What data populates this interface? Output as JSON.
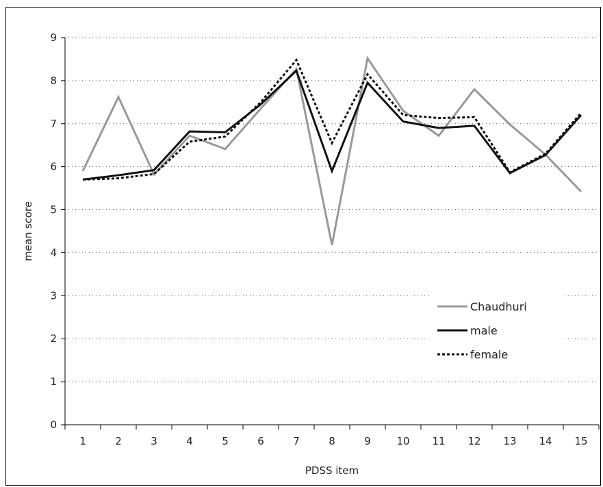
{
  "chart_data": {
    "type": "line",
    "title": "",
    "xlabel": "PDSS item",
    "ylabel": "mean score",
    "x": [
      1,
      2,
      3,
      4,
      5,
      6,
      7,
      8,
      9,
      10,
      11,
      12,
      13,
      14,
      15
    ],
    "ylim": [
      0,
      9
    ],
    "yticks": [
      0,
      1,
      2,
      3,
      4,
      5,
      6,
      7,
      8,
      9
    ],
    "grid": "horizontal dotted",
    "legend_position": "bottom-right",
    "series": [
      {
        "name": "Chaudhuri",
        "color": "#999999",
        "dash": "solid",
        "values": [
          5.9,
          7.62,
          5.82,
          6.72,
          6.41,
          7.35,
          8.27,
          4.18,
          8.52,
          7.3,
          6.72,
          7.8,
          6.98,
          6.28,
          5.42
        ]
      },
      {
        "name": "male",
        "color": "#111111",
        "dash": "solid",
        "values": [
          5.7,
          5.8,
          5.92,
          6.82,
          6.8,
          7.45,
          8.23,
          5.9,
          7.95,
          7.05,
          6.9,
          6.95,
          5.85,
          6.27,
          7.2
        ]
      },
      {
        "name": "female",
        "color": "#111111",
        "dash": "dotted",
        "values": [
          5.7,
          5.73,
          5.83,
          6.58,
          6.7,
          7.5,
          8.48,
          6.55,
          8.15,
          7.2,
          7.13,
          7.15,
          5.87,
          6.3,
          7.25
        ]
      }
    ]
  }
}
